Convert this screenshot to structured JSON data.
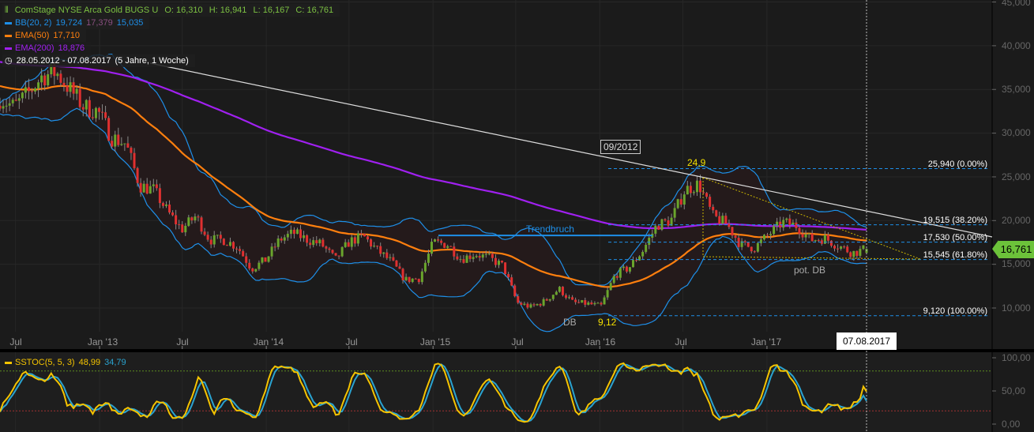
{
  "instrument": {
    "title": "ComStage NYSE Arca Gold BUGS U",
    "ohlc": {
      "open": "O: 16,310",
      "high": "H: 16,941",
      "low": "L: 16,167",
      "close": "C: 16,761"
    },
    "range": "28.05.2012 - 07.08.2017",
    "range_duration": "(5 Jahre, 1 Woche)",
    "last_price": "16,761",
    "cursor_date": "07.08.2017"
  },
  "indicators": {
    "bb": {
      "label": "BB(20, 2)",
      "upper": "19,724",
      "middle": "17,379",
      "lower": "15,035"
    },
    "ema50": {
      "label": "EMA(50)",
      "value": "17,710"
    },
    "ema200": {
      "label": "EMA(200)",
      "value": "18,876"
    },
    "sstoc": {
      "label": "SSTOC(5, 5, 3)",
      "k": "48,99",
      "d": "34,79"
    }
  },
  "colors": {
    "up": "#6aa52c",
    "down": "#e03030",
    "bb": "#1e8fe8",
    "ema50": "#ff7f0e",
    "ema200": "#a020f0",
    "stoch_k": "#f5c400",
    "stoch_d": "#2aa3d0",
    "fib": "#1e8fe8",
    "last_price": "#6cc23a",
    "title": "#7cc142"
  },
  "chart_data": {
    "type": "candlestick",
    "x_range": [
      "2012-05-28",
      "2017-08-07"
    ],
    "ylim": [
      5.5,
      45.5
    ],
    "y_ticks": [
      "10,000",
      "15,000",
      "20,000",
      "25,000",
      "30,000",
      "35,000",
      "40,000",
      "45,000"
    ],
    "y_tick_values": [
      10,
      15,
      20,
      25,
      30,
      35,
      40,
      45
    ],
    "x_ticks": [
      {
        "label": "Jul",
        "date": "2012-07-01"
      },
      {
        "label": "Jan '13",
        "date": "2013-01-01"
      },
      {
        "label": "Jul",
        "date": "2013-07-01"
      },
      {
        "label": "Jan '14",
        "date": "2014-01-01"
      },
      {
        "label": "Jul",
        "date": "2014-07-01"
      },
      {
        "label": "Jan '15",
        "date": "2015-01-01"
      },
      {
        "label": "Jul",
        "date": "2015-07-01"
      },
      {
        "label": "Jan '16",
        "date": "2016-01-01"
      },
      {
        "label": "Jul",
        "date": "2016-07-01"
      },
      {
        "label": "Jan '17",
        "date": "2017-01-01"
      }
    ],
    "monthly_close_approx": {
      "start_month": "2012-06",
      "values": [
        34,
        33,
        34.5,
        36.5,
        37,
        35,
        33,
        32.5,
        29.5,
        28.8,
        24,
        23.5,
        21,
        19,
        20.5,
        17.8,
        17.8,
        17,
        14.5,
        15.5,
        17.8,
        18.6,
        17.8,
        17.3,
        15.5,
        17.6,
        18.2,
        16.6,
        15.3,
        13.2,
        13.4,
        17.5,
        17.3,
        15.6,
        16.2,
        15.7,
        14.8,
        10.6,
        10.1,
        10.8,
        12.2,
        10.6,
        10.5,
        10.2,
        13.8,
        14.6,
        16.6,
        19.5,
        20,
        23.5,
        24.2,
        20.5,
        19.6,
        17.2,
        16.9,
        18.4,
        19.8,
        19.4,
        17.8,
        18,
        17.1,
        16.3,
        16.76
      ]
    },
    "fibonacci": [
      {
        "value": 25.94,
        "label": "25,940 (0.00%)"
      },
      {
        "value": 19.515,
        "label": "19,515 (38.20%)"
      },
      {
        "value": 17.53,
        "label": "17,530 (50.00%)"
      },
      {
        "value": 15.545,
        "label": "15,545 (61.80%)"
      },
      {
        "value": 9.12,
        "label": "9,120 (100.00%)"
      }
    ],
    "annotations": {
      "trendline_label": "09/2012",
      "trendbruch": "Trendbruch",
      "trendbruch_value": 18.3,
      "high_label": "24,9",
      "low_label": "9,12",
      "db": "DB",
      "pot_db": "pot. DB"
    },
    "stoch_panel": {
      "ylim": [
        0,
        100
      ],
      "y_ticks": [
        "0,00",
        "50,00",
        "100,00"
      ],
      "y_tick_values": [
        0,
        50,
        100
      ],
      "levels": [
        20,
        80
      ]
    }
  }
}
